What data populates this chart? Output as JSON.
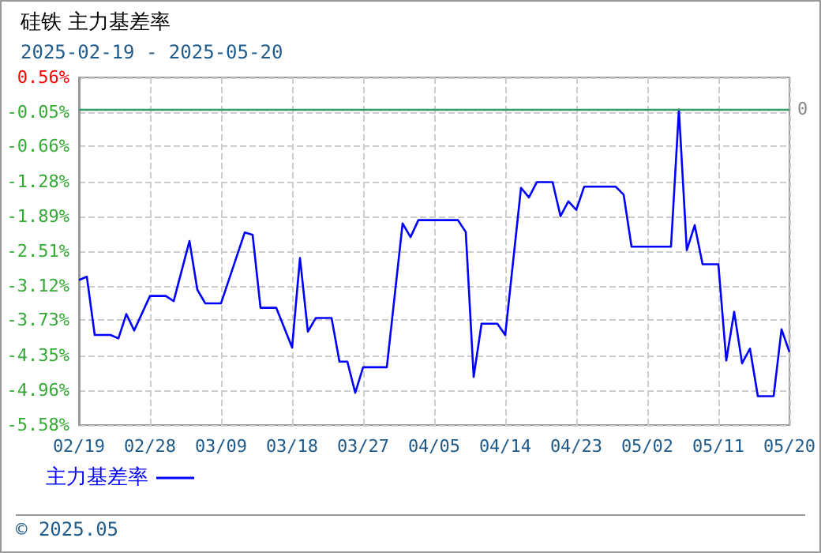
{
  "chart_data": {
    "type": "line",
    "title": "硅铁 主力基差率",
    "subtitle": "2025-02-19 - 2025-05-20",
    "x": [
      "2025-02-19",
      "2025-02-20",
      "2025-02-21",
      "2025-02-23",
      "2025-02-24",
      "2025-02-25",
      "2025-02-26",
      "2025-02-28",
      "2025-03-02",
      "2025-03-03",
      "2025-03-05",
      "2025-03-06",
      "2025-03-07",
      "2025-03-09",
      "2025-03-12",
      "2025-03-13",
      "2025-03-14",
      "2025-03-16",
      "2025-03-18",
      "2025-03-19",
      "2025-03-20",
      "2025-03-21",
      "2025-03-23",
      "2025-03-24",
      "2025-03-25",
      "2025-03-26",
      "2025-03-27",
      "2025-03-30",
      "2025-04-01",
      "2025-04-02",
      "2025-04-03",
      "2025-04-08",
      "2025-04-09",
      "2025-04-10",
      "2025-04-11",
      "2025-04-13",
      "2025-04-14",
      "2025-04-16",
      "2025-04-17",
      "2025-04-18",
      "2025-04-20",
      "2025-04-21",
      "2025-04-22",
      "2025-04-23",
      "2025-04-24",
      "2025-04-28",
      "2025-04-29",
      "2025-04-30",
      "2025-05-05",
      "2025-05-06",
      "2025-05-07",
      "2025-05-08",
      "2025-05-09",
      "2025-05-11",
      "2025-05-12",
      "2025-05-13",
      "2025-05-14",
      "2025-05-15",
      "2025-05-16",
      "2025-05-18",
      "2025-05-19",
      "2025-05-20"
    ],
    "series": [
      {
        "name": "主力基差率",
        "color": "#0000ff",
        "values": [
          -3.02,
          -2.96,
          -3.99,
          -3.99,
          -4.05,
          -3.62,
          -3.91,
          -3.3,
          -3.3,
          -3.39,
          -2.33,
          -3.19,
          -3.43,
          -3.43,
          -2.18,
          -2.22,
          -3.51,
          -3.51,
          -4.21,
          -2.63,
          -3.93,
          -3.69,
          -3.69,
          -4.46,
          -4.46,
          -5.01,
          -4.56,
          -4.56,
          -2.02,
          -2.26,
          -1.96,
          -1.96,
          -2.17,
          -4.73,
          -3.79,
          -3.79,
          -3.99,
          -1.39,
          -1.56,
          -1.29,
          -1.29,
          -1.89,
          -1.63,
          -1.78,
          -1.37,
          -1.37,
          -1.51,
          -2.43,
          -2.43,
          -0.01,
          -2.49,
          -2.05,
          -2.74,
          -2.74,
          -4.44,
          -3.58,
          -4.49,
          -4.23,
          -5.07,
          -5.07,
          -3.89,
          -4.29
        ]
      }
    ],
    "xlim": [
      "2025-02-19",
      "2025-05-20"
    ],
    "xticks": [
      {
        "value": "2025-02-19",
        "label": "02/19"
      },
      {
        "value": "2025-02-28",
        "label": "02/28"
      },
      {
        "value": "2025-03-09",
        "label": "03/09"
      },
      {
        "value": "2025-03-18",
        "label": "03/18"
      },
      {
        "value": "2025-03-27",
        "label": "03/27"
      },
      {
        "value": "2025-04-05",
        "label": "04/05"
      },
      {
        "value": "2025-04-14",
        "label": "04/14"
      },
      {
        "value": "2025-04-23",
        "label": "04/23"
      },
      {
        "value": "2025-05-02",
        "label": "05/02"
      },
      {
        "value": "2025-05-11",
        "label": "05/11"
      },
      {
        "value": "2025-05-20",
        "label": "05/20"
      }
    ],
    "ylim": [
      -5.58,
      0.56
    ],
    "yticks": [
      {
        "value": 0.56,
        "label": "0.56%"
      },
      {
        "value": -0.05,
        "label": "-0.05%"
      },
      {
        "value": -0.66,
        "label": "-0.66%"
      },
      {
        "value": -1.28,
        "label": "-1.28%"
      },
      {
        "value": -1.89,
        "label": "-1.89%"
      },
      {
        "value": -2.51,
        "label": "-2.51%"
      },
      {
        "value": -3.12,
        "label": "-3.12%"
      },
      {
        "value": -3.73,
        "label": "-3.73%"
      },
      {
        "value": -4.35,
        "label": "-4.35%"
      },
      {
        "value": -4.96,
        "label": "-4.96%"
      },
      {
        "value": -5.58,
        "label": "-5.58%"
      }
    ],
    "ref_lines": [
      {
        "axis": "y",
        "value": 0,
        "label": "0",
        "color": "#339966"
      }
    ],
    "grid": true,
    "legend": "bottom left",
    "marker": "none",
    "line_style": "solid",
    "annotations": [
      "© 2025.05"
    ]
  }
}
